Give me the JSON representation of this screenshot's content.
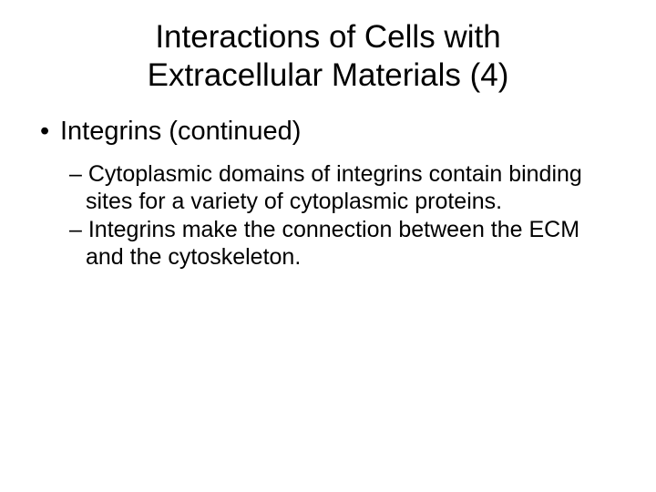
{
  "title_line1": "Interactions of Cells with",
  "title_line2": "Extracellular Materials (4)",
  "bullet1": "Integrins (continued)",
  "sub1": "Cytoplasmic domains of integrins contain binding sites for a variety of cytoplasmic proteins.",
  "sub2": "Integrins make the connection between the ECM and the cytoskeleton.",
  "colors": {
    "background": "#ffffff",
    "text": "#000000"
  },
  "fonts": {
    "family": "Arial",
    "title_size_pt": 35,
    "level1_size_pt": 29,
    "level2_size_pt": 25
  }
}
